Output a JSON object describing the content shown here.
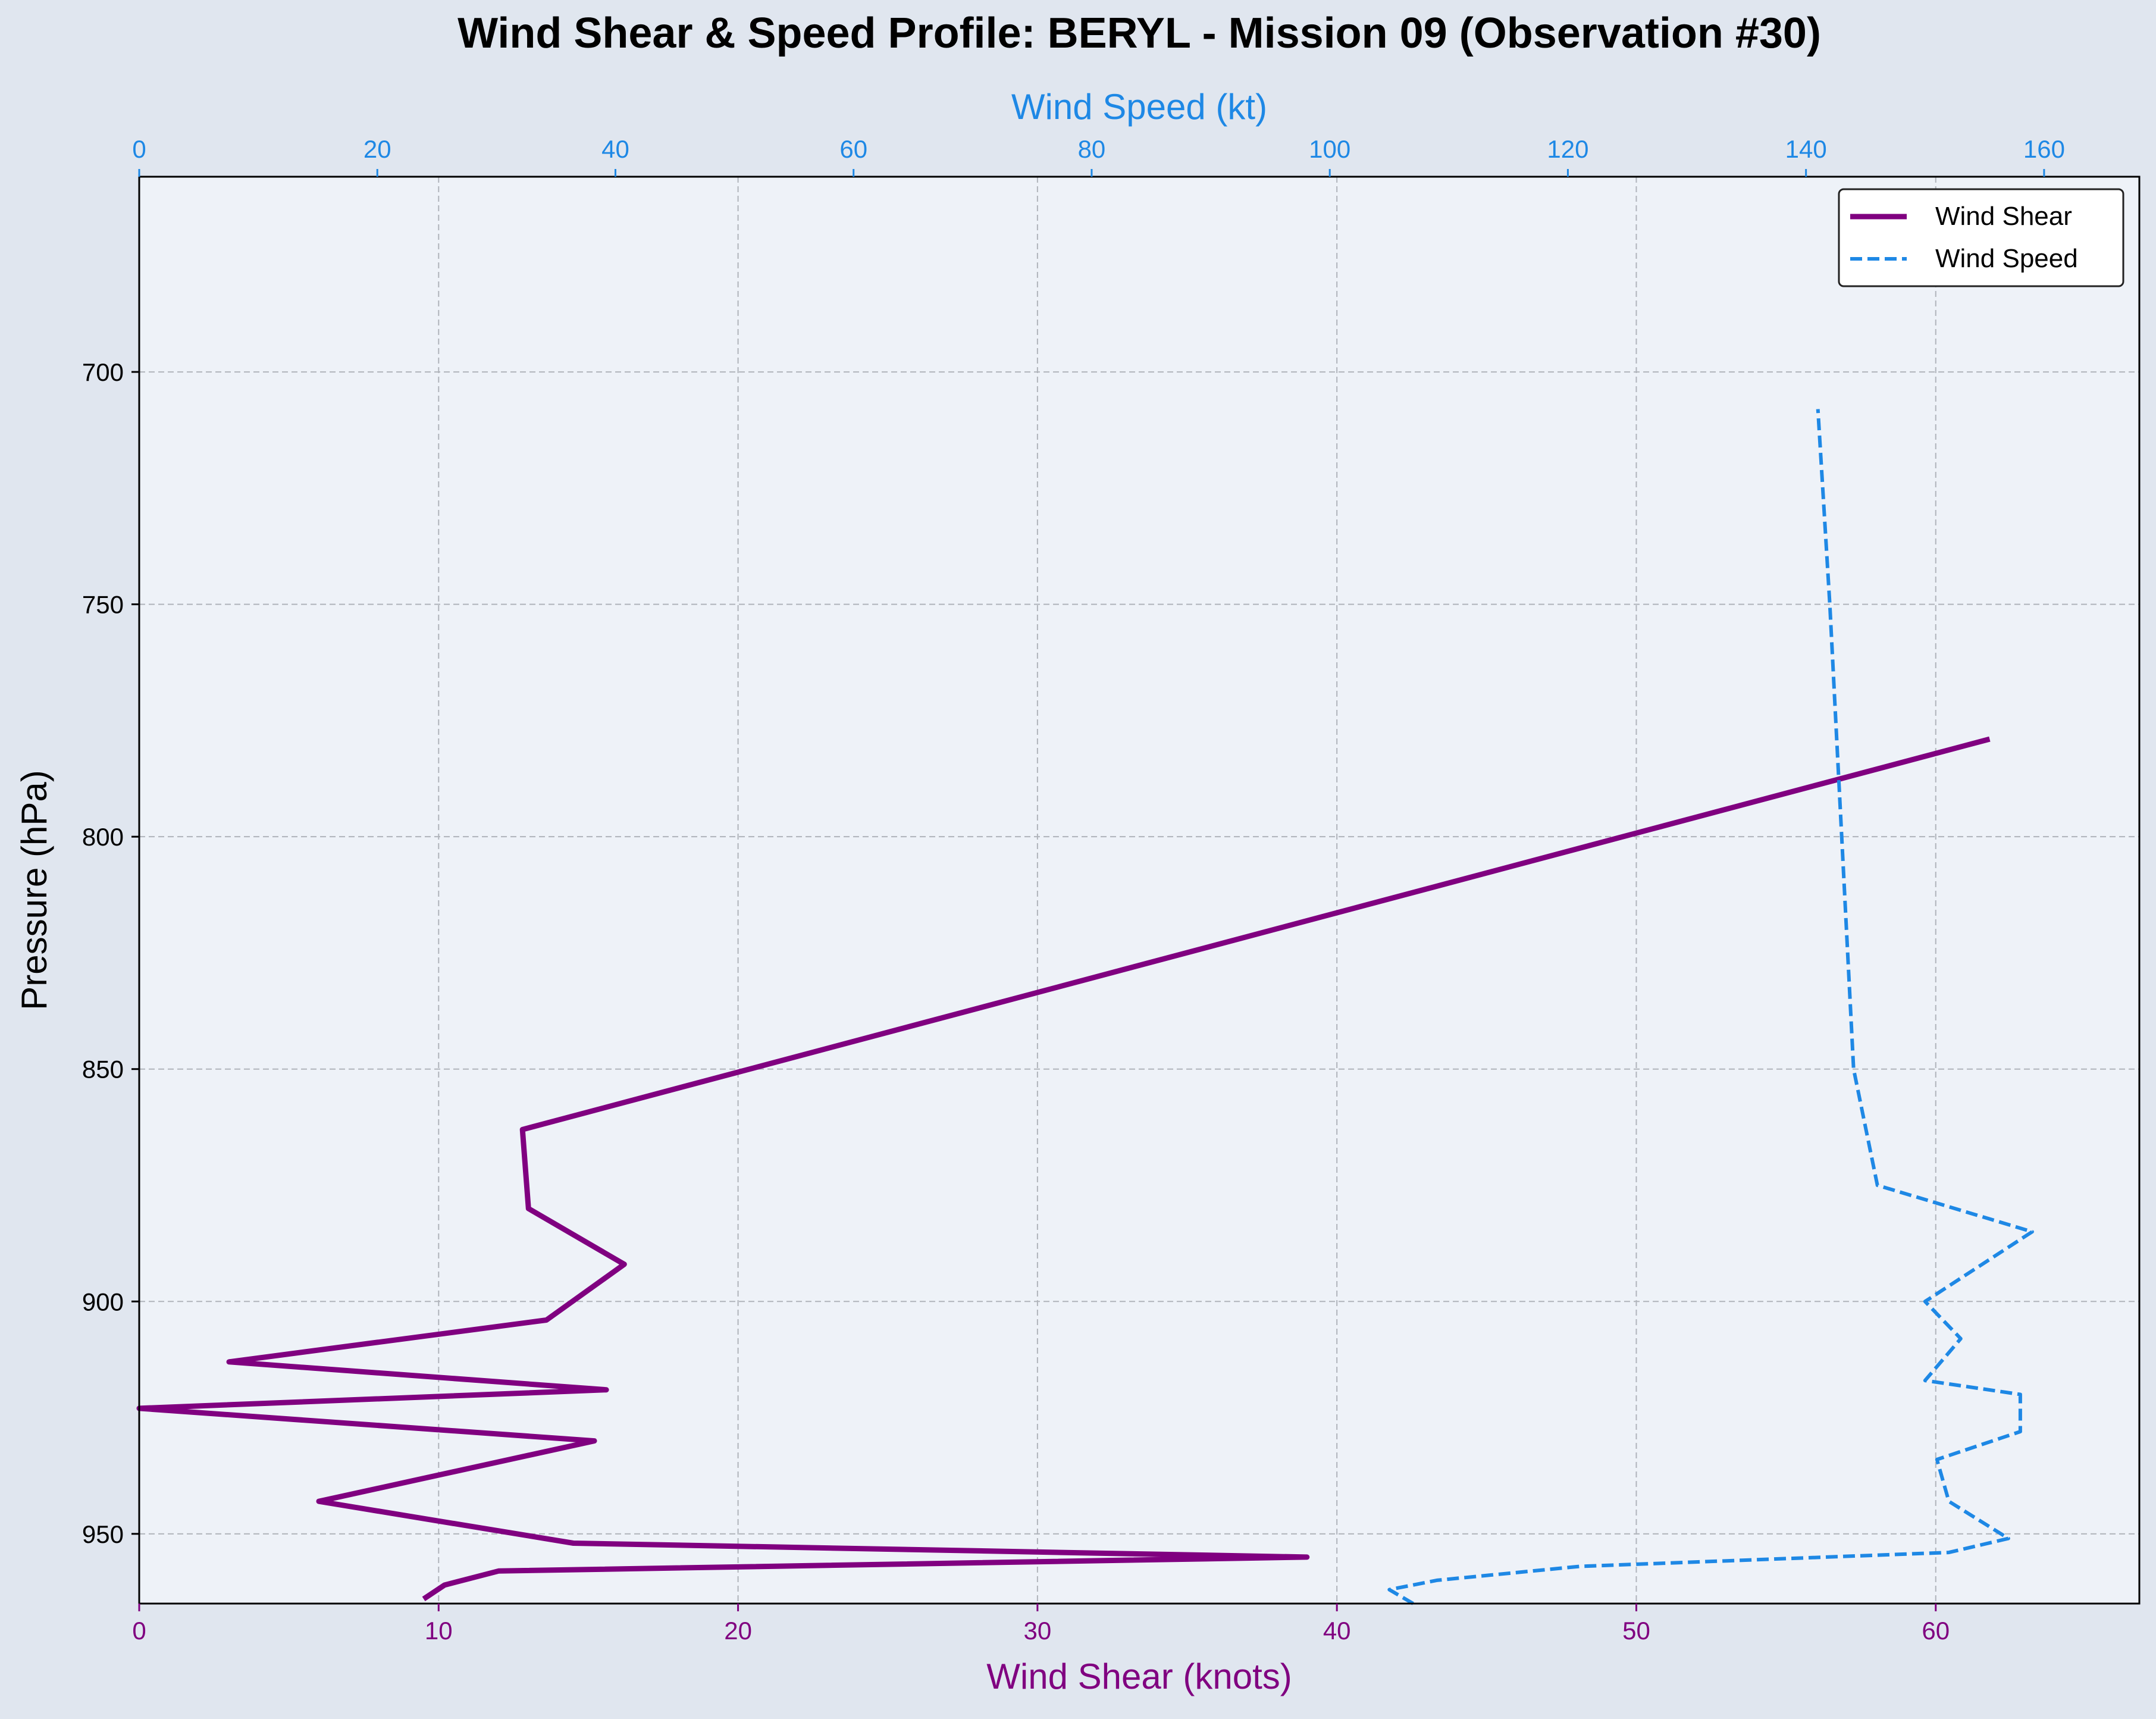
{
  "chart_data": {
    "type": "line",
    "title": "Wind Shear & Speed Profile: BERYL - Mission 09 (Observation #30)",
    "ylabel": "Pressure (hPa)",
    "xlabel_bottom": "Wind Shear (knots)",
    "xlabel_top": "Wind Speed (kt)",
    "ylim": [
      965,
      658
    ],
    "y_inverted": true,
    "xlim_bottom": [
      0,
      66.8
    ],
    "xlim_top": [
      0,
      168
    ],
    "yticks": [
      700,
      750,
      800,
      850,
      900,
      950
    ],
    "xticks_bottom": [
      0,
      10,
      20,
      30,
      40,
      50,
      60
    ],
    "xticks_top": [
      0,
      20,
      40,
      60,
      80,
      100,
      120,
      140,
      160
    ],
    "grid": true,
    "legend_position": "top-right",
    "series": [
      {
        "name": "Wind Shear",
        "axis": "bottom",
        "color": "#800080",
        "style": "solid",
        "points": [
          {
            "x": 9.5,
            "y": 964
          },
          {
            "x": 10.2,
            "y": 961
          },
          {
            "x": 12.0,
            "y": 958
          },
          {
            "x": 39.0,
            "y": 955
          },
          {
            "x": 14.5,
            "y": 952
          },
          {
            "x": 6.0,
            "y": 943
          },
          {
            "x": 15.2,
            "y": 930
          },
          {
            "x": 0.0,
            "y": 923
          },
          {
            "x": 15.6,
            "y": 919
          },
          {
            "x": 3.0,
            "y": 913
          },
          {
            "x": 13.6,
            "y": 904
          },
          {
            "x": 16.2,
            "y": 892
          },
          {
            "x": 13.0,
            "y": 880
          },
          {
            "x": 12.8,
            "y": 863
          },
          {
            "x": 61.8,
            "y": 779
          }
        ]
      },
      {
        "name": "Wind Speed",
        "axis": "top",
        "color": "#1e88e5",
        "style": "dashed",
        "points": [
          {
            "x": 107,
            "y": 965
          },
          {
            "x": 105,
            "y": 962
          },
          {
            "x": 109,
            "y": 960
          },
          {
            "x": 121,
            "y": 957
          },
          {
            "x": 152,
            "y": 954
          },
          {
            "x": 157,
            "y": 951
          },
          {
            "x": 152,
            "y": 943
          },
          {
            "x": 151,
            "y": 934
          },
          {
            "x": 158,
            "y": 928
          },
          {
            "x": 158,
            "y": 920
          },
          {
            "x": 150,
            "y": 917
          },
          {
            "x": 153,
            "y": 908
          },
          {
            "x": 150,
            "y": 900
          },
          {
            "x": 159,
            "y": 885
          },
          {
            "x": 146,
            "y": 875
          },
          {
            "x": 144,
            "y": 850
          },
          {
            "x": 143,
            "y": 800
          },
          {
            "x": 142,
            "y": 750
          },
          {
            "x": 141,
            "y": 708
          }
        ]
      }
    ]
  }
}
